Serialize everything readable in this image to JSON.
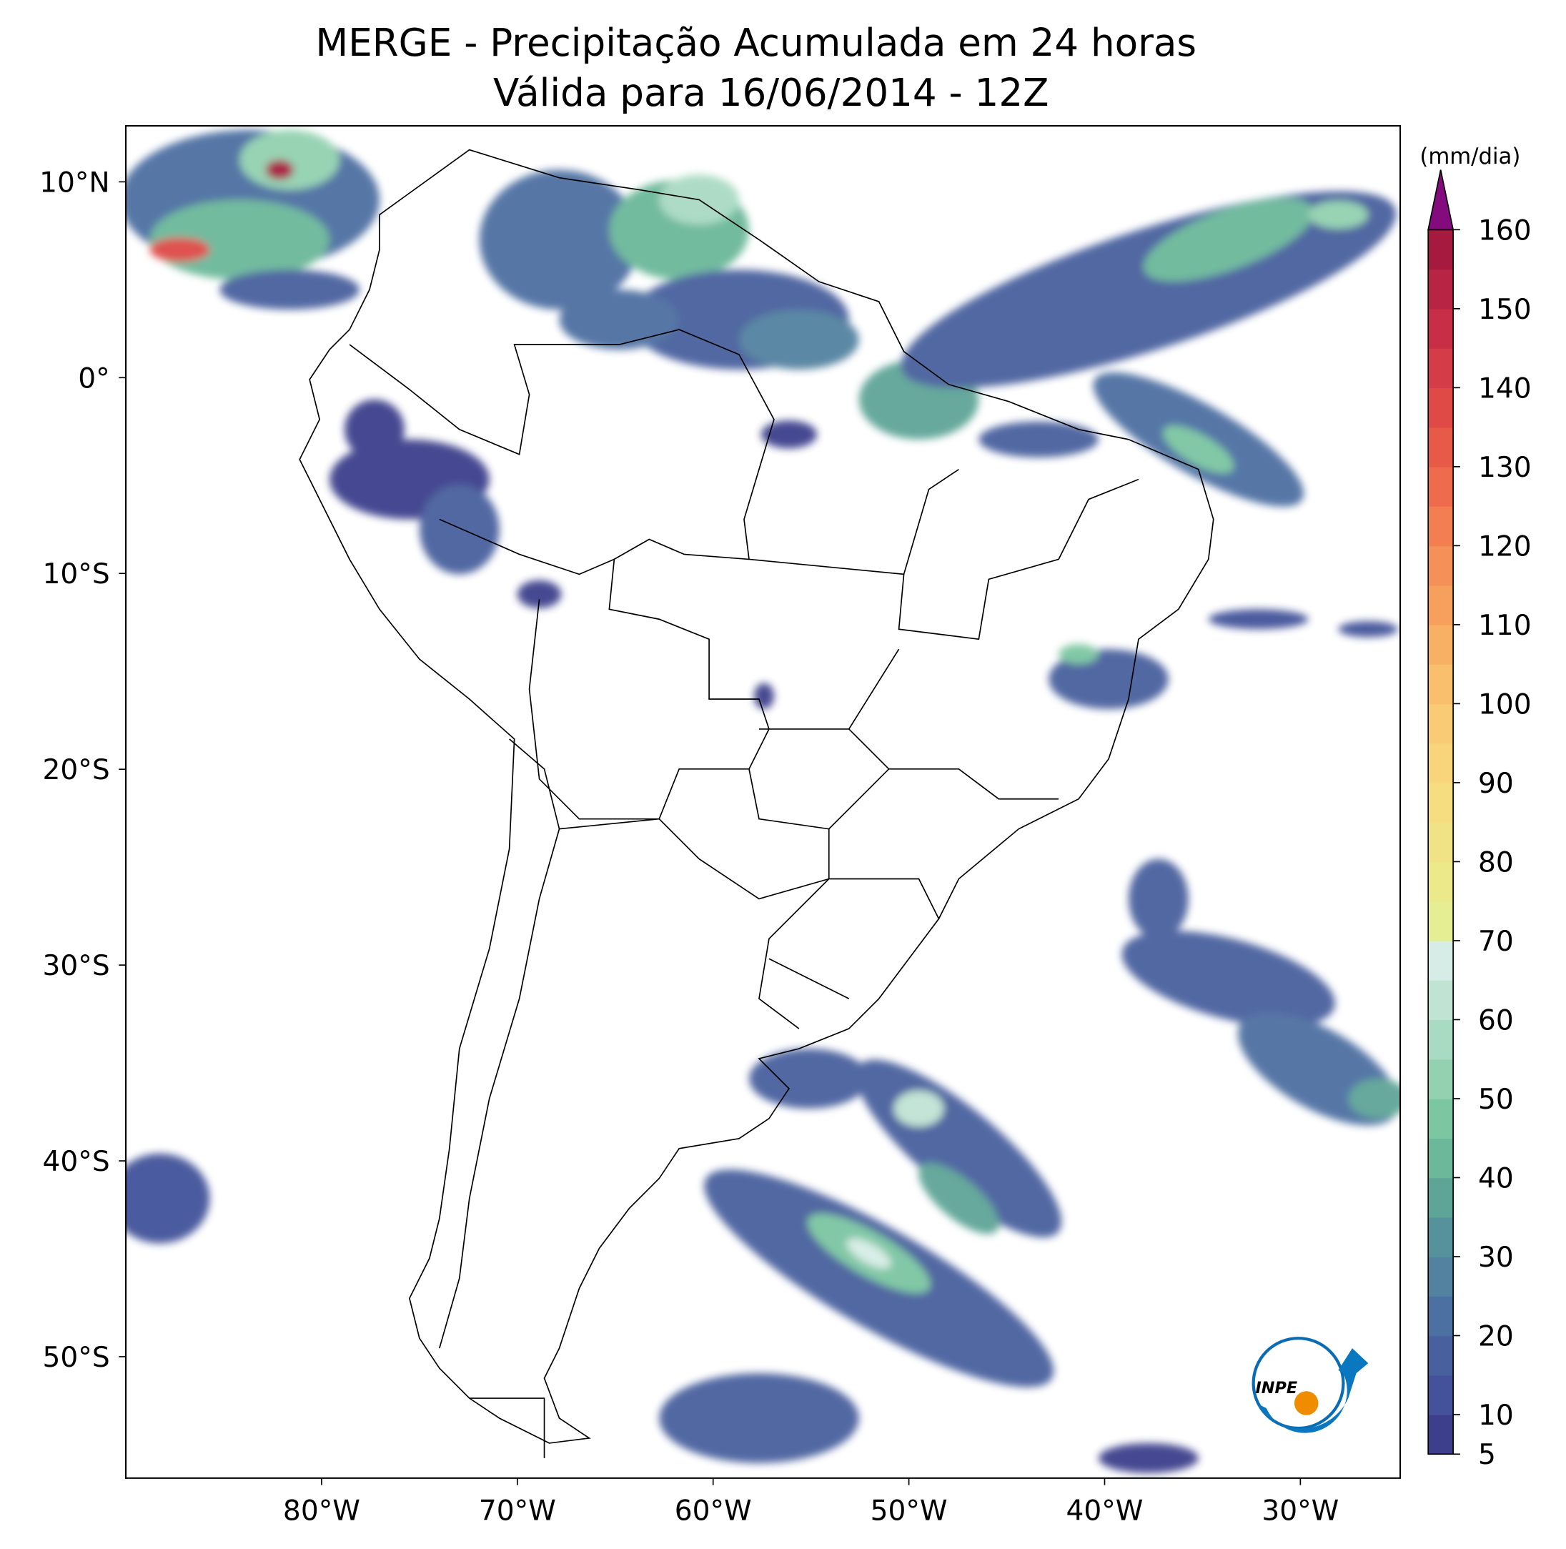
{
  "title": [
    "MERGE - Precipitação Acumulada em 24 horas",
    "Válida para 16/06/2014 - 12Z"
  ],
  "map": {
    "xlim": [
      -90,
      -24.9
    ],
    "ylim": [
      -56.2,
      12.86
    ],
    "xticks": [
      {
        "value": -80,
        "label": "80°W"
      },
      {
        "value": -70,
        "label": "70°W"
      },
      {
        "value": -60,
        "label": "60°W"
      },
      {
        "value": -50,
        "label": "50°W"
      },
      {
        "value": -40,
        "label": "40°W"
      },
      {
        "value": -30,
        "label": "30°W"
      }
    ],
    "yticks": [
      {
        "value": 10,
        "label": "10°N"
      },
      {
        "value": 0,
        "label": "0°"
      },
      {
        "value": -10,
        "label": "10°S"
      },
      {
        "value": -20,
        "label": "20°S"
      },
      {
        "value": -30,
        "label": "30°S"
      },
      {
        "value": -40,
        "label": "40°S"
      },
      {
        "value": -50,
        "label": "50°S"
      }
    ]
  },
  "colorbar": {
    "label": "(mm/dia)",
    "lim": [
      5,
      160
    ],
    "ticks": [
      5,
      10,
      20,
      30,
      40,
      50,
      60,
      70,
      80,
      90,
      100,
      110,
      120,
      130,
      140,
      150,
      160
    ],
    "levels": [
      5,
      10,
      15,
      20,
      25,
      30,
      35,
      40,
      45,
      50,
      55,
      60,
      65,
      70,
      75,
      80,
      85,
      90,
      95,
      100,
      105,
      110,
      115,
      120,
      125,
      130,
      135,
      140,
      145,
      150,
      155,
      160
    ],
    "colors": [
      "#3e3f8c",
      "#43529a",
      "#48619e",
      "#4d70a2",
      "#5282a0",
      "#56929c",
      "#5ea597",
      "#6cb89a",
      "#7cc6a2",
      "#93d1b0",
      "#a9dac2",
      "#c0e3d4",
      "#d6ece6",
      "#e5ee92",
      "#ebe98a",
      "#f0e385",
      "#f5dd80",
      "#f8d57a",
      "#f9cb74",
      "#f9bf6c",
      "#f8b064",
      "#f7a05d",
      "#f59058",
      "#f27e52",
      "#ee6c4d",
      "#e75a48",
      "#df4a47",
      "#d43c47",
      "#c82f46",
      "#b82443",
      "#a61a40"
    ],
    "extend_color": "#830b7d"
  },
  "logo": "INPE"
}
